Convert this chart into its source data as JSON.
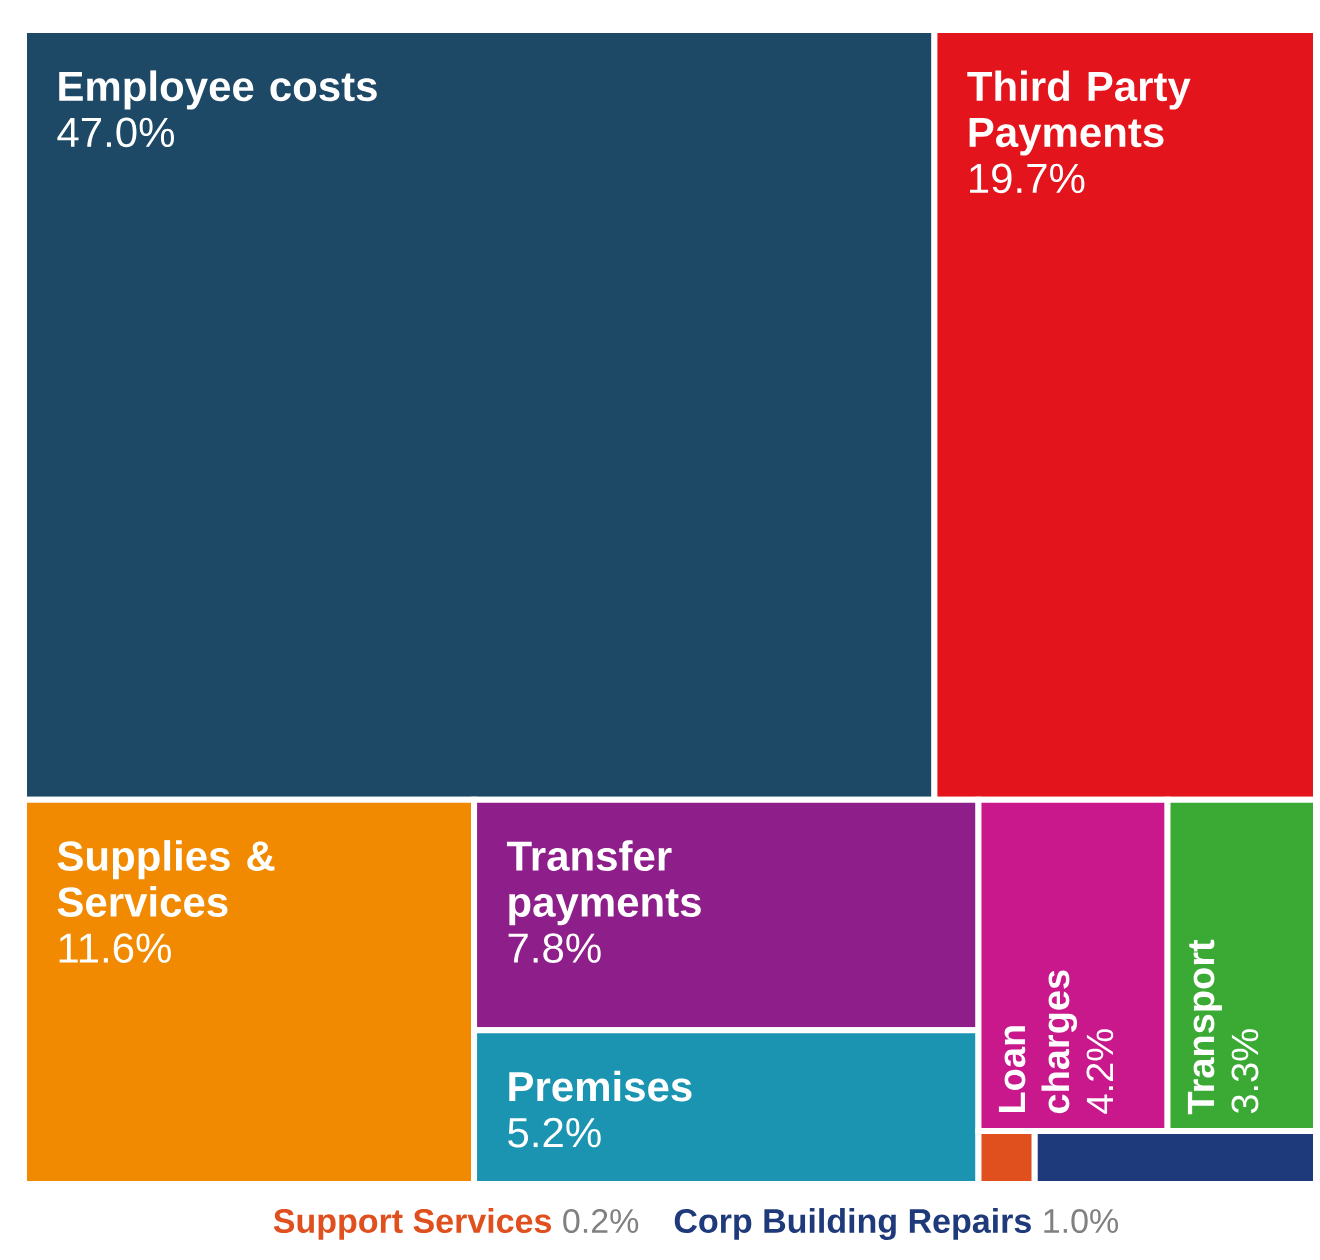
{
  "chart_data": {
    "type": "other",
    "categories": [
      "Employee costs",
      "Third Party Payments",
      "Supplies & Services",
      "Transfer payments",
      "Premises",
      "Loan charges",
      "Transport",
      "Support Services",
      "Corp Building Repairs"
    ],
    "values": [
      47.0,
      19.7,
      11.6,
      7.8,
      5.2,
      4.2,
      3.3,
      0.2,
      1.0
    ],
    "value_labels": [
      "47.0%",
      "19.7%",
      "11.6%",
      "7.8%",
      "5.2%",
      "4.2%",
      "3.3%",
      "0.2%",
      "1.0%"
    ],
    "colors": [
      "#1d4866",
      "#e3141b",
      "#f18a00",
      "#8e1f8a",
      "#1a94b0",
      "#c8188c",
      "#3aaa35",
      "#e0501e",
      "#1f3a7a"
    ]
  }
}
